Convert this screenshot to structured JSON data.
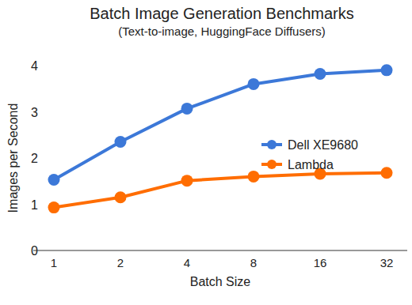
{
  "chart_data": {
    "type": "line",
    "title": "Batch Image Generation Benchmarks",
    "subtitle": "(Text-to-image, HuggingFace Diffusers)",
    "x_label": "Batch Size",
    "y_label": "Images per Second",
    "categories": [
      "1",
      "2",
      "4",
      "8",
      "16",
      "32"
    ],
    "series": [
      {
        "name": "Dell XE9680",
        "color": "#3c78d8",
        "values": [
          1.53,
          2.35,
          3.07,
          3.6,
          3.82,
          3.9
        ]
      },
      {
        "name": "Lambda",
        "color": "#ff6d01",
        "values": [
          0.93,
          1.15,
          1.51,
          1.6,
          1.66,
          1.68
        ]
      }
    ],
    "ylim": [
      0,
      4
    ],
    "yticks": [
      0,
      1,
      2,
      3,
      4
    ],
    "grid": false,
    "legend": "right",
    "marker": "circle",
    "line_style": "solid"
  }
}
